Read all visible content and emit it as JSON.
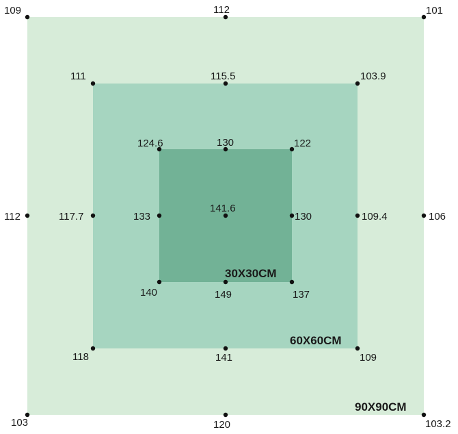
{
  "colors": {
    "outer": "#d7ecd9",
    "middle": "#a6d5c0",
    "inner": "#72b296",
    "dot": "#111111",
    "text": "#1a1a1a"
  },
  "squares": {
    "outer": {
      "size_label": "90X90CM"
    },
    "middle": {
      "size_label": "60X60CM"
    },
    "inner": {
      "size_label": "30X30CM"
    }
  },
  "readings": {
    "outer": {
      "top_left": "109",
      "top_center": "112",
      "top_right": "101",
      "mid_left": "112",
      "mid_right": "106",
      "bottom_left": "103",
      "bottom_center": "120",
      "bottom_right": "103.2"
    },
    "middle": {
      "top_left": "111",
      "top_center": "115.5",
      "top_right": "103.9",
      "mid_left": "117.7",
      "mid_right": "109.4",
      "bottom_left": "118",
      "bottom_center": "141",
      "bottom_right": "109"
    },
    "inner": {
      "top_left": "124.6",
      "top_center": "130",
      "top_right": "122",
      "mid_left": "133",
      "center": "141.6",
      "mid_right": "130",
      "bottom_left": "140",
      "bottom_center": "149",
      "bottom_right": "137"
    }
  }
}
